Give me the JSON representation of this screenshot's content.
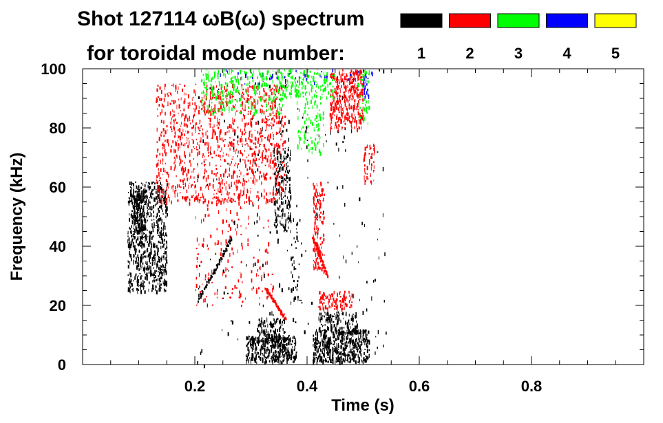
{
  "chart_data": {
    "type": "heatmap",
    "title_line1": "Shot 127114 ωB(ω) spectrum",
    "title_line2": "for toroidal mode number:",
    "xlabel": "Time (s)",
    "ylabel": "Frequency (kHz)",
    "xlim": [
      0.0,
      1.0
    ],
    "ylim": [
      0,
      100
    ],
    "x_ticks": [
      0.2,
      0.4,
      0.6,
      0.8
    ],
    "x_tick_labels": [
      "0.2",
      "0.4",
      "0.6",
      "0.8"
    ],
    "y_ticks": [
      0,
      20,
      40,
      60,
      80,
      100
    ],
    "y_tick_labels": [
      "0",
      "20",
      "40",
      "60",
      "80",
      "100"
    ],
    "grid": false,
    "legend_placement": "top-right",
    "legend": [
      {
        "mode": "1",
        "color": "#000000"
      },
      {
        "mode": "2",
        "color": "#ff0000"
      },
      {
        "mode": "3",
        "color": "#00ff00"
      },
      {
        "mode": "4",
        "color": "#0000ff"
      },
      {
        "mode": "5",
        "color": "#ffff00"
      }
    ],
    "regions": [
      {
        "mode": "1",
        "t": [
          0.08,
          0.15
        ],
        "f": [
          25,
          62
        ],
        "density": 0.5
      },
      {
        "mode": "1",
        "t": [
          0.09,
          0.11
        ],
        "f": [
          45,
          58
        ],
        "density": 0.8
      },
      {
        "mode": "1",
        "t": [
          0.29,
          0.38
        ],
        "f": [
          1,
          10
        ],
        "density": 0.75
      },
      {
        "mode": "1",
        "t": [
          0.31,
          0.36
        ],
        "f": [
          8,
          16
        ],
        "density": 0.55
      },
      {
        "mode": "1",
        "t": [
          0.41,
          0.51
        ],
        "f": [
          1,
          12
        ],
        "density": 0.75
      },
      {
        "mode": "1",
        "t": [
          0.42,
          0.49
        ],
        "f": [
          11,
          18
        ],
        "density": 0.5
      },
      {
        "mode": "1",
        "t": [
          0.34,
          0.37
        ],
        "f": [
          45,
          74
        ],
        "density": 0.4
      },
      {
        "mode": "1",
        "t": [
          0.37,
          0.39
        ],
        "f": [
          20,
          50
        ],
        "density": 0.12
      },
      {
        "mode": "1",
        "t": [
          0.2,
          0.54
        ],
        "f": [
          0,
          100
        ],
        "density": 0.01
      },
      {
        "mode": "2",
        "t": [
          0.13,
          0.36
        ],
        "f": [
          55,
          95
        ],
        "density": 0.22
      },
      {
        "mode": "2",
        "t": [
          0.2,
          0.34
        ],
        "f": [
          20,
          58
        ],
        "density": 0.06
      },
      {
        "mode": "2",
        "t": [
          0.44,
          0.5
        ],
        "f": [
          80,
          100
        ],
        "density": 0.55
      },
      {
        "mode": "2",
        "t": [
          0.41,
          0.43
        ],
        "f": [
          32,
          62
        ],
        "density": 0.4
      },
      {
        "mode": "2",
        "t": [
          0.42,
          0.48
        ],
        "f": [
          19,
          25
        ],
        "density": 0.5
      },
      {
        "mode": "2",
        "t": [
          0.5,
          0.52
        ],
        "f": [
          62,
          75
        ],
        "density": 0.3
      },
      {
        "mode": "3",
        "t": [
          0.21,
          0.36
        ],
        "f": [
          85,
          100
        ],
        "density": 0.22
      },
      {
        "mode": "3",
        "t": [
          0.35,
          0.45
        ],
        "f": [
          90,
          100
        ],
        "density": 0.3
      },
      {
        "mode": "3",
        "t": [
          0.38,
          0.43
        ],
        "f": [
          72,
          90
        ],
        "density": 0.15
      },
      {
        "mode": "3",
        "t": [
          0.49,
          0.51
        ],
        "f": [
          82,
          100
        ],
        "density": 0.25
      },
      {
        "mode": "4",
        "t": [
          0.24,
          0.52
        ],
        "f": [
          95,
          100
        ],
        "density": 0.05
      },
      {
        "mode": "4",
        "t": [
          0.5,
          0.51
        ],
        "f": [
          90,
          98
        ],
        "density": 0.3
      }
    ],
    "features": [
      {
        "mode": "1",
        "t": [
          0.205,
          0.265
        ],
        "f": [
          22,
          43
        ]
      },
      {
        "mode": "2",
        "t": [
          0.325,
          0.36
        ],
        "f": [
          26,
          16
        ]
      },
      {
        "mode": "2",
        "t": [
          0.41,
          0.435
        ],
        "f": [
          43,
          30
        ]
      }
    ]
  }
}
